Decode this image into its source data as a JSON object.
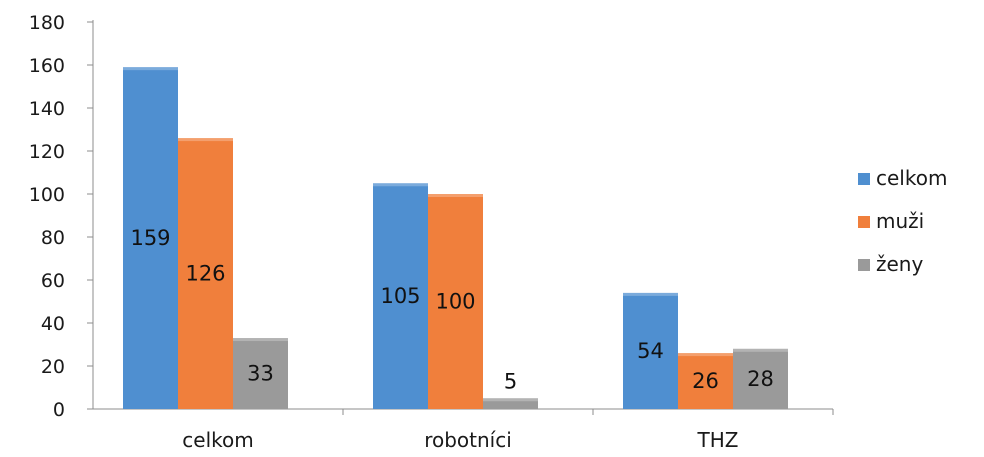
{
  "chart_data": {
    "type": "bar",
    "categories": [
      "celkom",
      "robotníci",
      "THZ"
    ],
    "series": [
      {
        "name": "celkom",
        "values": [
          159,
          105,
          54
        ],
        "color": "#4f8fd0"
      },
      {
        "name": "muži",
        "values": [
          126,
          100,
          26
        ],
        "color": "#f07f3c"
      },
      {
        "name": "ženy",
        "values": [
          33,
          5,
          28
        ],
        "color": "#9a9a9a"
      }
    ],
    "title": "",
    "xlabel": "",
    "ylabel": "",
    "ylim": [
      0,
      180
    ],
    "yticks": [
      0,
      20,
      40,
      60,
      80,
      100,
      120,
      140,
      160,
      180
    ],
    "grid": false,
    "legend": "right"
  }
}
